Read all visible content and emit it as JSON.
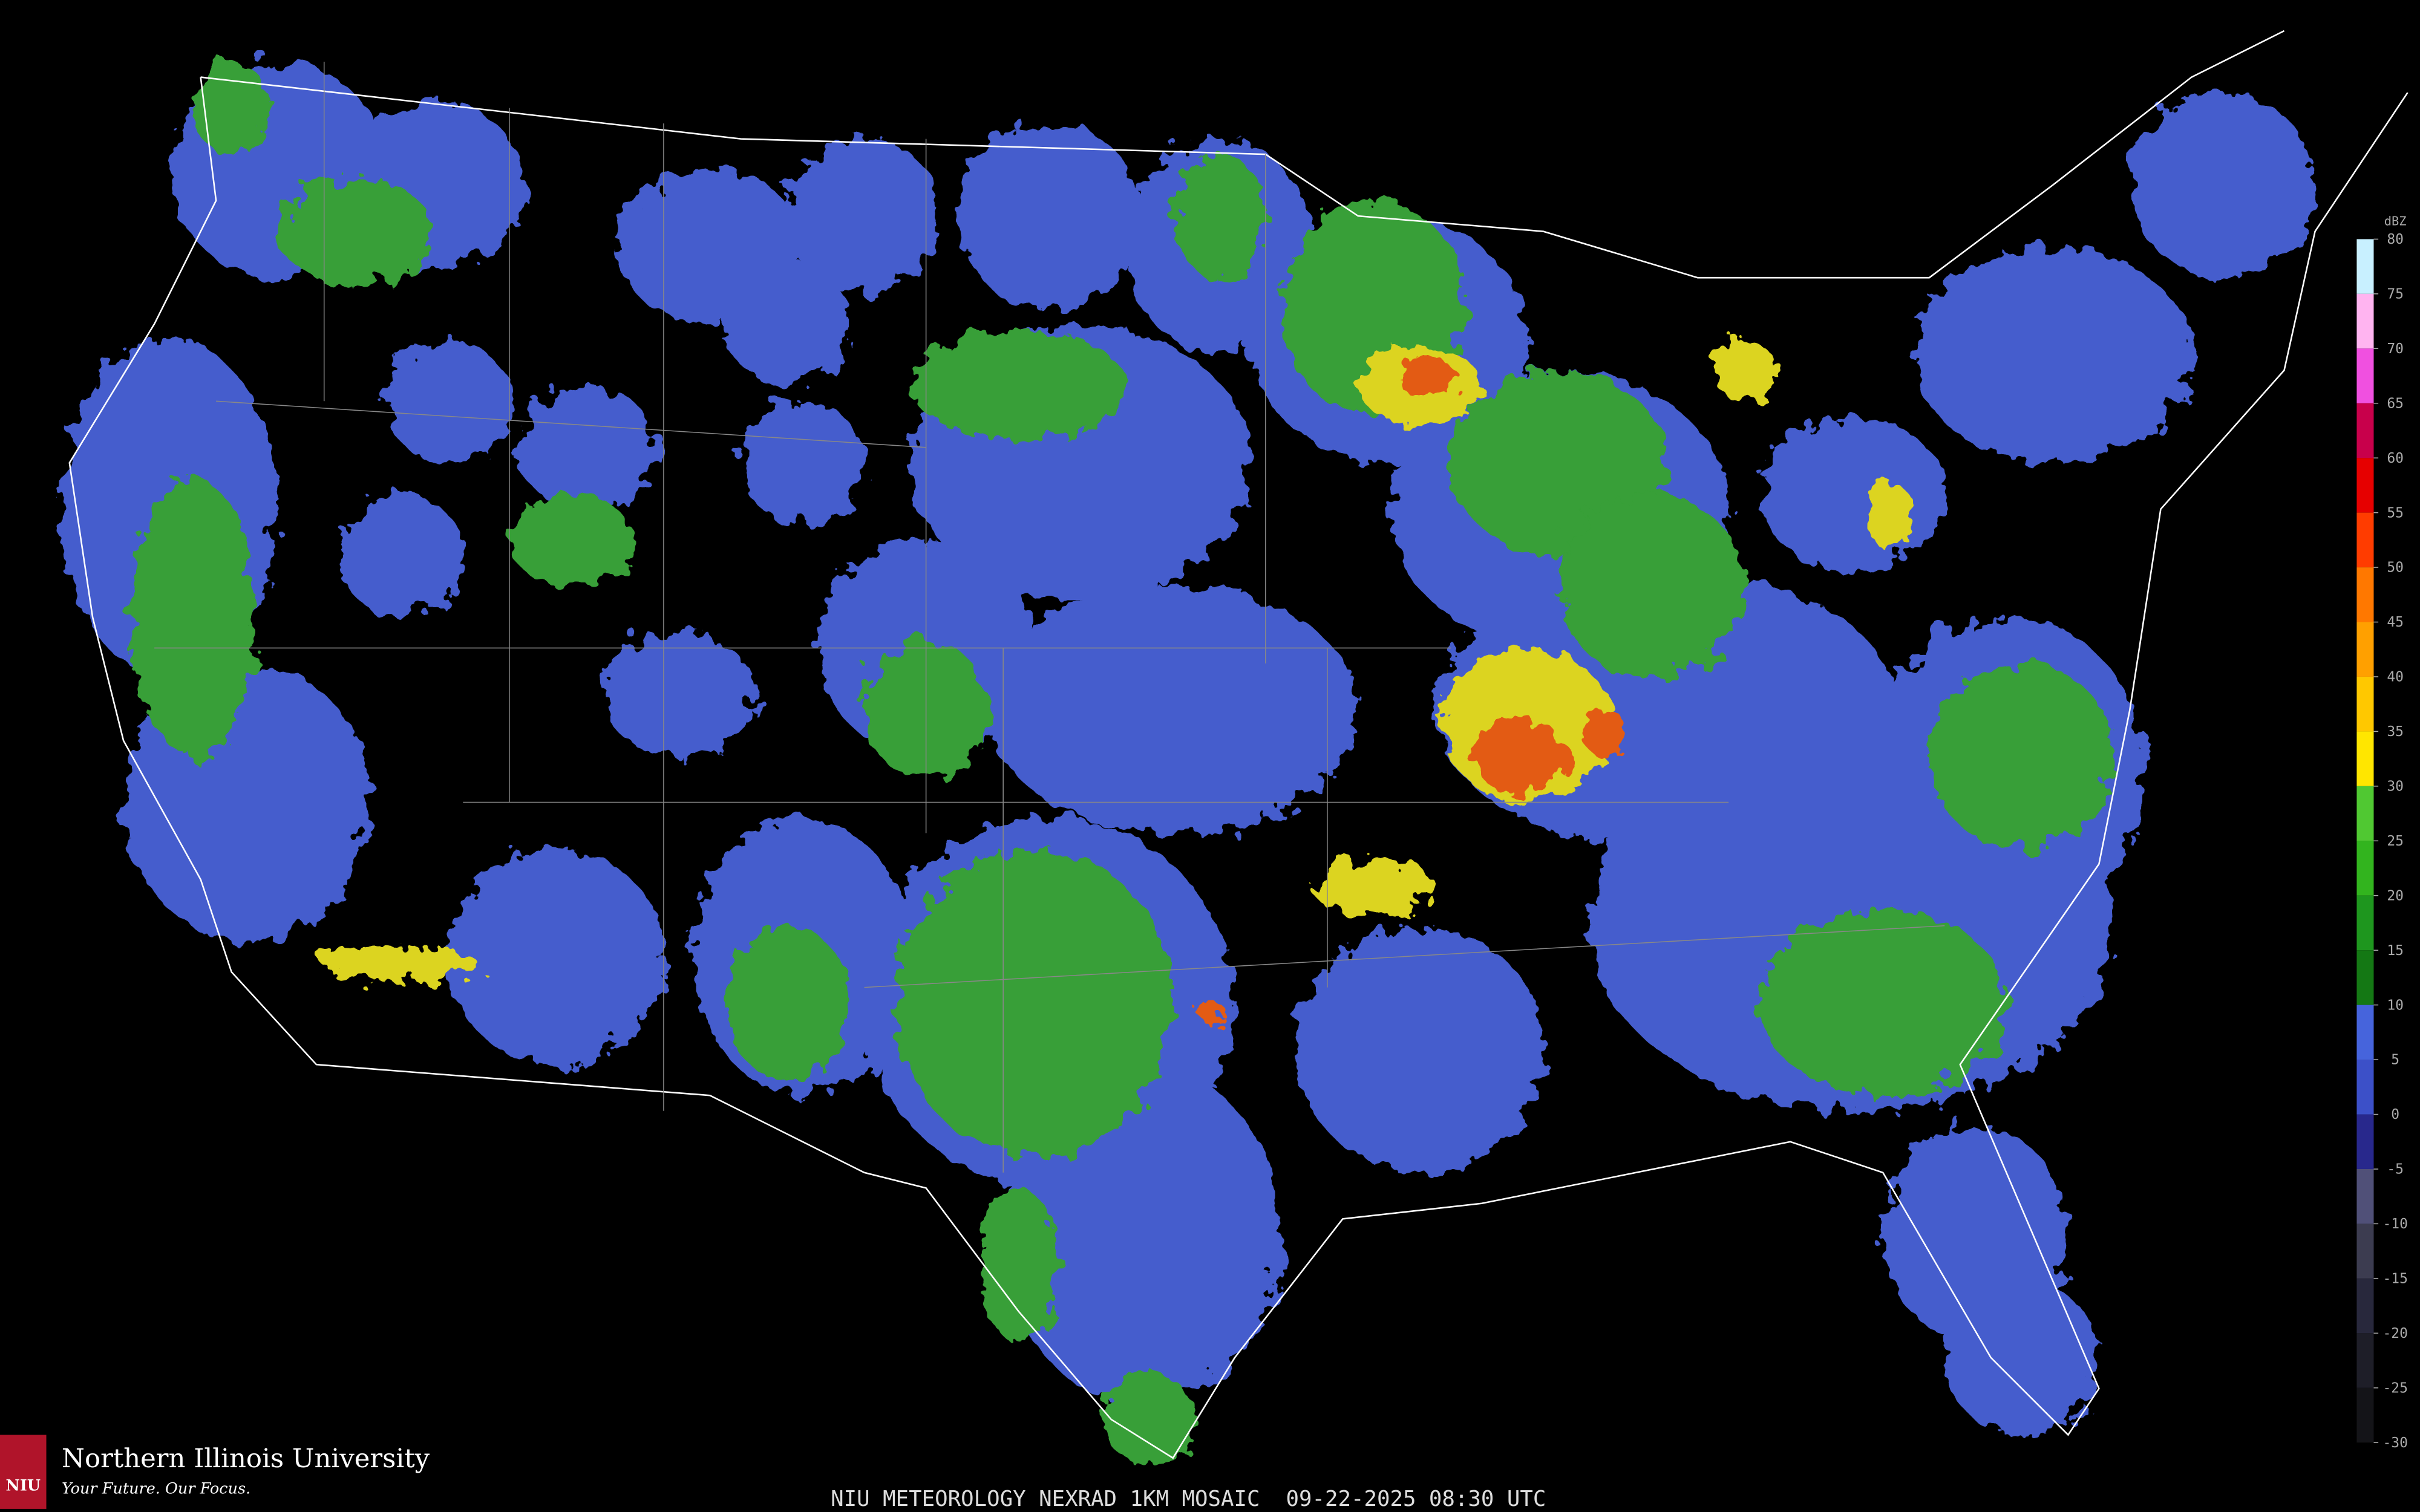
{
  "footer": {
    "caption": "NIU METEOROLOGY NEXRAD 1KM MOSAIC  09-22-2025 08:30 UTC"
  },
  "logo": {
    "badge": "NIU",
    "name": "Northern Illinois University",
    "tagline": "Your Future. Our Focus."
  },
  "legend": {
    "label": "dBZ",
    "ticks": [
      80,
      75,
      70,
      65,
      60,
      55,
      50,
      45,
      40,
      35,
      30,
      25,
      20,
      15,
      10,
      5,
      0,
      -5,
      -10,
      -15,
      -20,
      -25,
      -30
    ],
    "colors": [
      "#c8f0ff",
      "#ffb4f0",
      "#f050e0",
      "#c8004b",
      "#e60000",
      "#ff3c00",
      "#ff7800",
      "#ffa000",
      "#ffc800",
      "#ffe600",
      "#50c832",
      "#32b41e",
      "#1e961e",
      "#147814",
      "#4664dc",
      "#3c50c8",
      "#28288c",
      "#505078",
      "#3c3c50",
      "#28283c",
      "#1e1e28",
      "#141418"
    ]
  }
}
